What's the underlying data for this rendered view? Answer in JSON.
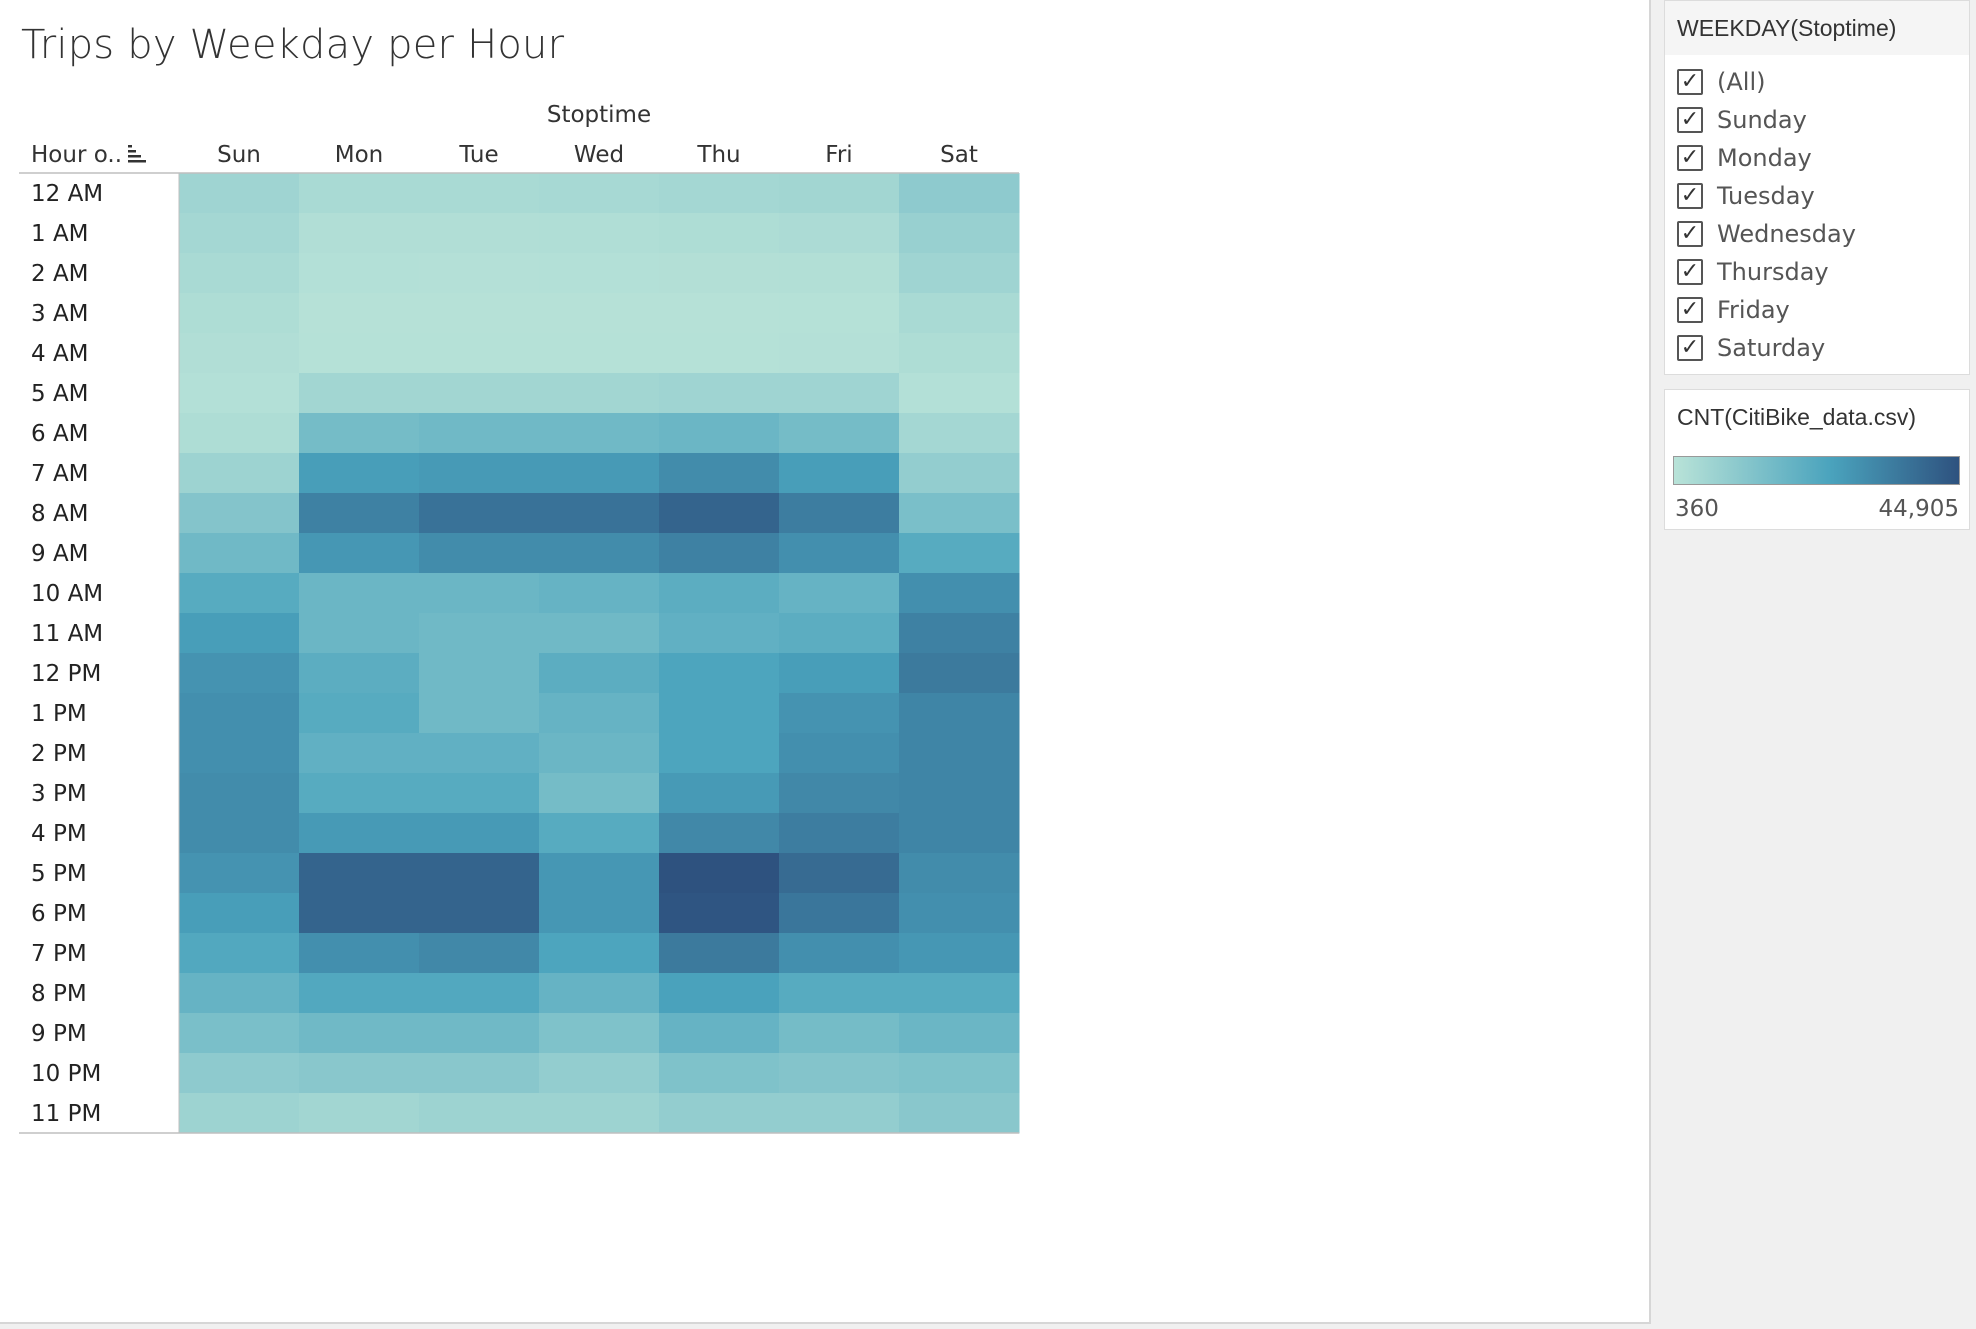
{
  "title": "Trips by Weekday per Hour",
  "chart_data": {
    "type": "heatmap",
    "title": "Trips by Weekday per Hour",
    "column_header": "Stoptime",
    "row_header": "Hour o..",
    "x": [
      "Sun",
      "Mon",
      "Tue",
      "Wed",
      "Thu",
      "Fri",
      "Sat"
    ],
    "y": [
      "12 AM",
      "1 AM",
      "2 AM",
      "3 AM",
      "4 AM",
      "5 AM",
      "6 AM",
      "7 AM",
      "8 AM",
      "9 AM",
      "10 AM",
      "11 AM",
      "12 PM",
      "1 PM",
      "2 PM",
      "3 PM",
      "4 PM",
      "5 PM",
      "6 PM",
      "7 PM",
      "8 PM",
      "9 PM",
      "10 PM",
      "11 PM"
    ],
    "values": [
      [
        5500,
        3500,
        3500,
        4000,
        4500,
        5000,
        9000
      ],
      [
        4500,
        2000,
        2000,
        2200,
        2500,
        3000,
        7000
      ],
      [
        3500,
        1500,
        1400,
        1500,
        1600,
        1800,
        5500
      ],
      [
        2500,
        900,
        900,
        900,
        900,
        1100,
        3500
      ],
      [
        2000,
        1200,
        1200,
        1200,
        1200,
        1300,
        2500
      ],
      [
        1500,
        5000,
        5000,
        5000,
        5500,
        5500,
        1500
      ],
      [
        2500,
        14000,
        15000,
        15000,
        16000,
        14000,
        4500
      ],
      [
        6000,
        24000,
        25000,
        25000,
        29000,
        24000,
        8000
      ],
      [
        11000,
        32000,
        36000,
        36000,
        40000,
        33000,
        13000
      ],
      [
        15000,
        26000,
        29000,
        29000,
        32000,
        28000,
        20000
      ],
      [
        20000,
        16000,
        16000,
        17000,
        19000,
        17000,
        28000
      ],
      [
        24000,
        16000,
        15000,
        15000,
        18000,
        19000,
        32000
      ],
      [
        27000,
        19000,
        15000,
        19000,
        22000,
        24000,
        34000
      ],
      [
        28000,
        20000,
        15000,
        17000,
        22000,
        27000,
        31000
      ],
      [
        28000,
        18000,
        18000,
        16000,
        22000,
        28000,
        31000
      ],
      [
        29000,
        20000,
        20000,
        14000,
        25000,
        30000,
        31000
      ],
      [
        29000,
        25000,
        25000,
        20000,
        30000,
        33000,
        31000
      ],
      [
        27000,
        40000,
        40000,
        26000,
        44905,
        38000,
        29000
      ],
      [
        24000,
        40000,
        40000,
        26000,
        44000,
        35000,
        28000
      ],
      [
        21000,
        28000,
        30000,
        22000,
        34000,
        28000,
        26000
      ],
      [
        17000,
        21000,
        21000,
        17000,
        23000,
        20000,
        20000
      ],
      [
        13000,
        15000,
        15000,
        12000,
        17000,
        14000,
        16000
      ],
      [
        9000,
        10000,
        10000,
        8000,
        12000,
        11000,
        12000
      ],
      [
        6000,
        5000,
        6000,
        6000,
        8000,
        8000,
        10000
      ]
    ],
    "color_min": 360,
    "color_max": 44905,
    "color_scale": [
      "#b9e3d8",
      "#4aa3bd",
      "#2e527f"
    ],
    "header_line_color": "#bfbfbf"
  },
  "filter": {
    "title": "WEEKDAY(Stoptime)",
    "items": [
      {
        "label": "(All)",
        "checked": true
      },
      {
        "label": "Sunday",
        "checked": true
      },
      {
        "label": "Monday",
        "checked": true
      },
      {
        "label": "Tuesday",
        "checked": true
      },
      {
        "label": "Wednesday",
        "checked": true
      },
      {
        "label": "Thursday",
        "checked": true
      },
      {
        "label": "Friday",
        "checked": true
      },
      {
        "label": "Saturday",
        "checked": true
      }
    ],
    "check_glyph": "✓"
  },
  "legend": {
    "title": "CNT(CitiBike_data.csv)",
    "min_label": "360",
    "max_label": "44,905"
  }
}
